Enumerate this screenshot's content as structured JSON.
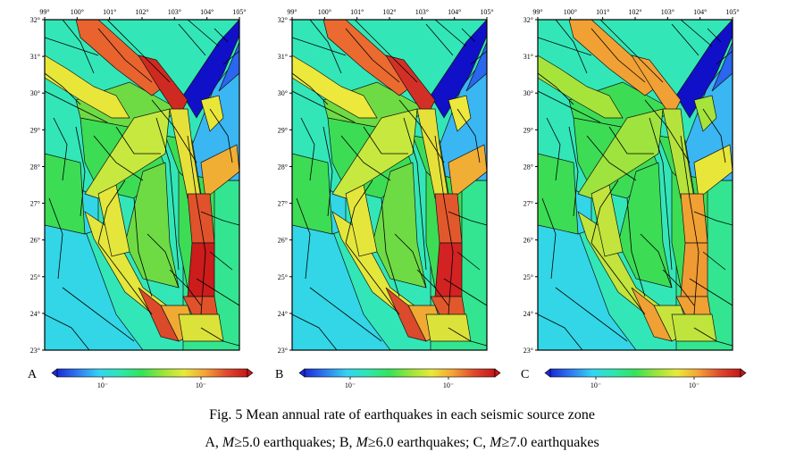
{
  "lon_ticks": [
    "99°",
    "100°",
    "101°",
    "102°",
    "103°",
    "104°",
    "105°"
  ],
  "lat_ticks": [
    "32°",
    "31°",
    "30°",
    "29°",
    "28°",
    "27°",
    "26°",
    "25°",
    "24°",
    "23°"
  ],
  "colorbar": {
    "colors": [
      "#1a2bd6",
      "#2f7df0",
      "#33d4f3",
      "#2ee6b0",
      "#33e35a",
      "#9ae43a",
      "#e8ea3a",
      "#f5a236",
      "#e04a2e",
      "#c41818"
    ],
    "tick_labels": [
      "10⁻",
      "10⁻"
    ]
  },
  "panels": [
    {
      "letter": "A",
      "zones": {
        "ne": "#1010c8",
        "ne_b": "#2a66ee",
        "e_upper": "#3ab6f2",
        "e_lower": "#33e590",
        "nw_bg": "#33e6b8",
        "w_low": "#33d6e6",
        "core": "#3ddc55",
        "mid": "#6edb45",
        "xsh": "#e9632e",
        "xsh2": "#cf2a21",
        "xsh3": "#e9e63a",
        "anning": "#e0522c",
        "anning2": "#cc1c1c",
        "xj": "#c7e83e",
        "jsj": "#e6e03a",
        "lmsh": "#f1ae34",
        "sw": "#e4e63c",
        "south": "#f0aa33",
        "south2": "#da4a2b",
        "yong": "#dbe23a"
      }
    },
    {
      "letter": "B",
      "zones": {
        "ne": "#1010c8",
        "ne_b": "#2a66ee",
        "e_upper": "#3ab6f2",
        "e_lower": "#33e590",
        "nw_bg": "#33e6b8",
        "w_low": "#33d6e6",
        "core": "#3ddc55",
        "mid": "#6edb45",
        "xsh": "#ea6a30",
        "xsh2": "#d23026",
        "xsh3": "#ece83c",
        "anning": "#e2582d",
        "anning2": "#d22222",
        "xj": "#c7e83e",
        "jsj": "#e6e03a",
        "lmsh": "#f1ae34",
        "sw": "#e4e63c",
        "south": "#f0aa33",
        "south2": "#da4a2b",
        "yong": "#dbe23a"
      }
    },
    {
      "letter": "C",
      "zones": {
        "ne": "#1010c8",
        "ne_b": "#2a66ee",
        "e_upper": "#3ab6f2",
        "e_lower": "#33e590",
        "nw_bg": "#33e6b8",
        "w_low": "#33d6e6",
        "core": "#3ddc55",
        "mid": "#3ddc55",
        "xsh": "#f1a034",
        "xsh2": "#f0a034",
        "xsh3": "#a6e43c",
        "anning": "#f1a034",
        "anning2": "#ef9a33",
        "xj": "#9ee33e",
        "jsj": "#b5e33c",
        "lmsh": "#e9e63a",
        "sw": "#c2e43c",
        "south": "#c8e43c",
        "south2": "#f0a034",
        "yong": "#bfe43c"
      }
    }
  ],
  "caption": {
    "line1": "Fig. 5 Mean annual rate of earthquakes in each seismic source zone",
    "line2": [
      {
        "t": "A, ",
        "i": false
      },
      {
        "t": "M",
        "i": true
      },
      {
        "t": "≥5.0 earthquakes; B, ",
        "i": false
      },
      {
        "t": "M",
        "i": true
      },
      {
        "t": "≥6.0 earthquakes; C, ",
        "i": false
      },
      {
        "t": "M",
        "i": true
      },
      {
        "t": "≥7.0 earthquakes",
        "i": false
      }
    ]
  }
}
